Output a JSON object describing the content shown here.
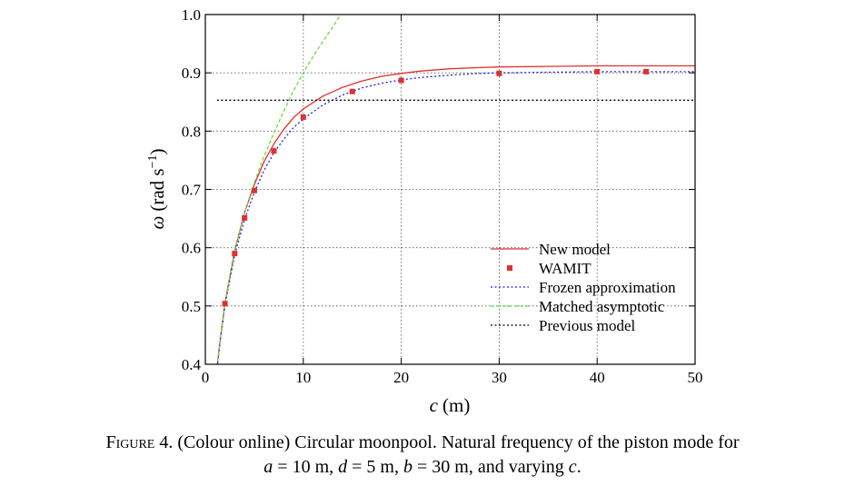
{
  "chart_data": {
    "type": "line",
    "title": "",
    "xlabel_symbol": "c",
    "xlabel_unit": "(m)",
    "ylabel_symbol": "ω",
    "ylabel_unit_prefix": "(rad s",
    "ylabel_unit_exponent": "−1",
    "ylabel_unit_suffix": ")",
    "xlim": [
      0,
      50
    ],
    "ylim": [
      0.4,
      1.0
    ],
    "xticks": [
      0,
      10,
      20,
      30,
      40,
      50
    ],
    "yticks": [
      0.4,
      0.5,
      0.6,
      0.7,
      0.8,
      0.9,
      1.0
    ],
    "xtick_labels": [
      "0",
      "10",
      "20",
      "30",
      "40",
      "50"
    ],
    "ytick_labels": [
      "0.4",
      "0.5",
      "0.6",
      "0.7",
      "0.8",
      "0.9",
      "1.0"
    ],
    "grid": true,
    "legend_position": "bottom-right",
    "series": [
      {
        "name": "New model",
        "style": "line",
        "color": "#e03030",
        "x": [
          1.2,
          1.5,
          2,
          3,
          4,
          5,
          6,
          7,
          8,
          9,
          10,
          12,
          14,
          16,
          18,
          20,
          22,
          25,
          28,
          30,
          35,
          40,
          45,
          50
        ],
        "y": [
          0.395,
          0.44,
          0.505,
          0.595,
          0.66,
          0.708,
          0.748,
          0.778,
          0.803,
          0.823,
          0.838,
          0.86,
          0.875,
          0.886,
          0.894,
          0.899,
          0.903,
          0.907,
          0.909,
          0.91,
          0.911,
          0.912,
          0.912,
          0.912
        ]
      },
      {
        "name": "WAMIT",
        "style": "marker",
        "color": "#e03030",
        "x": [
          2,
          3,
          4,
          5,
          7,
          10,
          15,
          20,
          30,
          40,
          45
        ],
        "y": [
          0.504,
          0.59,
          0.651,
          0.698,
          0.766,
          0.824,
          0.868,
          0.887,
          0.899,
          0.902,
          0.902
        ]
      },
      {
        "name": "Frozen approximation",
        "style": "dotted",
        "color": "#2222dd",
        "x": [
          1.2,
          1.5,
          2,
          3,
          4,
          5,
          6,
          7,
          8,
          9,
          10,
          12,
          14,
          16,
          18,
          20,
          22,
          25,
          28,
          30,
          35,
          40,
          45,
          50
        ],
        "y": [
          0.395,
          0.438,
          0.502,
          0.588,
          0.648,
          0.695,
          0.733,
          0.763,
          0.786,
          0.806,
          0.821,
          0.845,
          0.862,
          0.874,
          0.882,
          0.888,
          0.892,
          0.896,
          0.899,
          0.9,
          0.901,
          0.902,
          0.902,
          0.902
        ]
      },
      {
        "name": "Matched asymptotic",
        "style": "dashed",
        "color": "#66dd44",
        "x": [
          1.2,
          1.5,
          2,
          3,
          4,
          5,
          6,
          7,
          8,
          9,
          10,
          11,
          12,
          13,
          13.8
        ],
        "y": [
          0.395,
          0.44,
          0.505,
          0.595,
          0.66,
          0.712,
          0.757,
          0.797,
          0.834,
          0.869,
          0.9,
          0.928,
          0.954,
          0.978,
          1.0
        ]
      },
      {
        "name": "Previous model",
        "style": "dotted",
        "color": "#000000",
        "x": [
          1.2,
          50
        ],
        "y": [
          0.853,
          0.853
        ]
      }
    ]
  },
  "caption": {
    "figure_label": "Figure 4.",
    "line1_text": " (Colour online) Circular moonpool. Natural frequency of the piston mode for",
    "line2_a_sym": "a",
    "line2_a_val": " = 10 m,  ",
    "line2_d_sym": "d",
    "line2_d_val": " = 5 m,  ",
    "line2_b_sym": "b",
    "line2_b_val": " = 30 m,  and  varying  ",
    "line2_c_sym": "c",
    "line2_end": "."
  }
}
